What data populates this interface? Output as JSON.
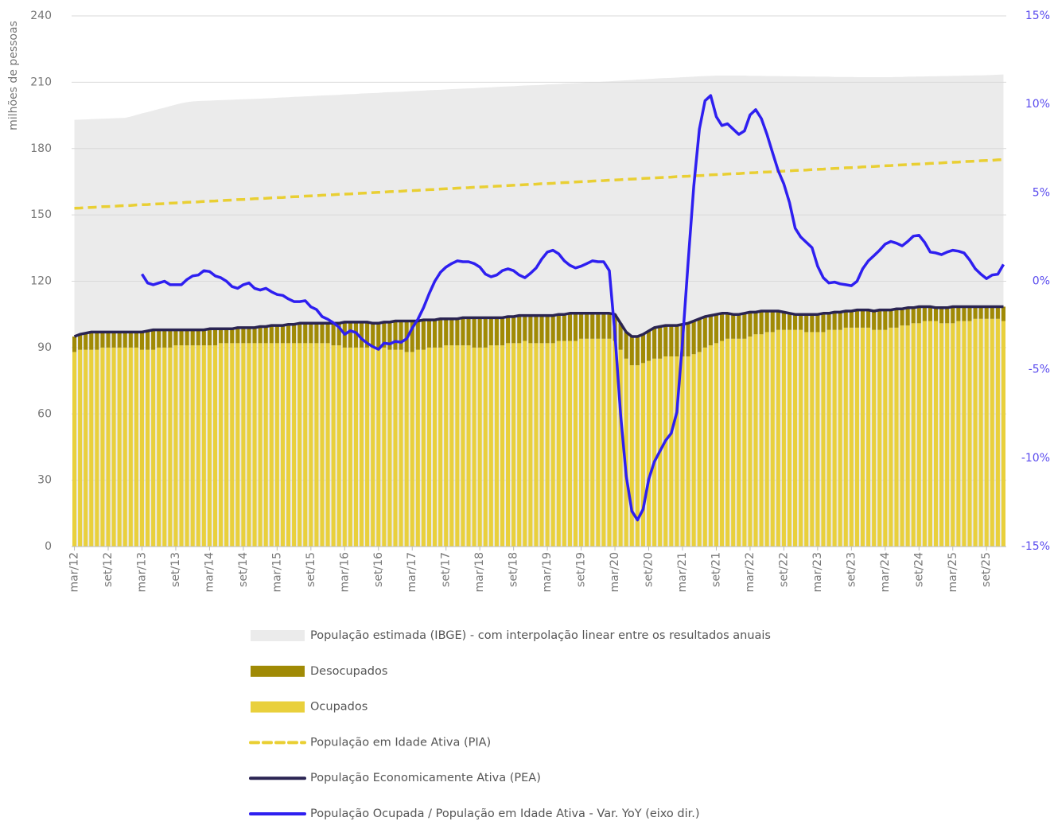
{
  "chart_data": {
    "type": "combo",
    "ylabel": "milhões de pessoas",
    "categories": [
      "mar/12",
      null,
      null,
      null,
      null,
      null,
      "set/12",
      null,
      null,
      null,
      null,
      null,
      "mar/13",
      null,
      null,
      null,
      null,
      null,
      "set/13",
      null,
      null,
      null,
      null,
      null,
      "mar/14",
      null,
      null,
      null,
      null,
      null,
      "set/14",
      null,
      null,
      null,
      null,
      null,
      "mar/15",
      null,
      null,
      null,
      null,
      null,
      "set/15",
      null,
      null,
      null,
      null,
      null,
      "mar/16",
      null,
      null,
      null,
      null,
      null,
      "set/16",
      null,
      null,
      null,
      null,
      null,
      "mar/17",
      null,
      null,
      null,
      null,
      null,
      "set/17",
      null,
      null,
      null,
      null,
      null,
      "mar/18",
      null,
      null,
      null,
      null,
      null,
      "set/18",
      null,
      null,
      null,
      null,
      null,
      "mar/19",
      null,
      null,
      null,
      null,
      null,
      "set/19",
      null,
      null,
      null,
      null,
      null,
      "mar/20",
      null,
      null,
      null,
      null,
      null,
      "set/20",
      null,
      null,
      null,
      null,
      null,
      "mar/21",
      null,
      null,
      null,
      null,
      null,
      "set/21",
      null,
      null,
      null,
      null,
      null,
      "mar/22",
      null,
      null,
      null,
      null,
      null,
      "set/22",
      null,
      null,
      null,
      null,
      null,
      "mar/23",
      null,
      null,
      null,
      null,
      null,
      "set/23",
      null,
      null,
      null,
      null,
      null,
      "mar/24",
      null,
      null,
      null,
      null,
      null,
      "set/24",
      null,
      null,
      null,
      null,
      null,
      "mar/25",
      null,
      null,
      null,
      null,
      null,
      "set/25",
      null,
      null,
      null
    ],
    "ylim": [
      0,
      240
    ],
    "yticks": [
      0,
      30,
      60,
      90,
      120,
      150,
      180,
      210,
      240
    ],
    "y2lim": [
      -15,
      15
    ],
    "y2ticks": [
      {
        "value": -15,
        "label": "-15%"
      },
      {
        "value": -10,
        "label": "-10%"
      },
      {
        "value": -5,
        "label": "-5%"
      },
      {
        "value": 0,
        "label": "0%"
      },
      {
        "value": 5,
        "label": "5%"
      },
      {
        "value": 10,
        "label": "10%"
      },
      {
        "value": 15,
        "label": "15%"
      }
    ],
    "grid": true,
    "series": [
      {
        "name": "População estimada (IBGE) - com interpolação linear entre os resultados anuais",
        "type": "area",
        "color": "#ebebeb",
        "values": [
          193.0,
          193.1,
          193.2,
          193.3,
          193.4,
          193.5,
          193.6,
          193.7,
          193.8,
          193.9,
          194.5,
          195.2,
          195.9,
          196.5,
          197.2,
          197.9,
          198.5,
          199.2,
          199.9,
          200.5,
          201.0,
          201.3,
          201.5,
          201.6,
          201.7,
          201.8,
          201.9,
          202.0,
          202.1,
          202.2,
          202.3,
          202.4,
          202.5,
          202.6,
          202.7,
          202.8,
          203.0,
          203.1,
          203.2,
          203.4,
          203.5,
          203.6,
          203.7,
          203.9,
          204.0,
          204.1,
          204.2,
          204.3,
          204.5,
          204.6,
          204.7,
          204.9,
          205.0,
          205.1,
          205.2,
          205.4,
          205.5,
          205.6,
          205.7,
          205.8,
          206.0,
          206.1,
          206.2,
          206.4,
          206.5,
          206.6,
          206.7,
          206.9,
          207.0,
          207.1,
          207.2,
          207.3,
          207.5,
          207.6,
          207.7,
          207.9,
          208.0,
          208.1,
          208.2,
          208.4,
          208.5,
          208.6,
          208.7,
          208.8,
          209.0,
          209.1,
          209.2,
          209.4,
          209.5,
          209.6,
          209.7,
          209.9,
          210.0,
          210.1,
          210.3,
          210.4,
          210.6,
          210.7,
          210.9,
          211.0,
          211.2,
          211.3,
          211.5,
          211.6,
          211.8,
          211.9,
          212.0,
          212.1,
          212.3,
          212.4,
          212.5,
          212.7,
          212.8,
          212.9,
          213.0,
          213.0,
          213.0,
          213.0,
          213.0,
          213.0,
          212.9,
          212.9,
          212.9,
          212.8,
          212.8,
          212.8,
          212.7,
          212.7,
          212.7,
          212.6,
          212.6,
          212.6,
          212.5,
          212.5,
          212.5,
          212.4,
          212.4,
          212.4,
          212.4,
          212.3,
          212.3,
          212.3,
          212.3,
          212.3,
          212.3,
          212.3,
          212.4,
          212.4,
          212.5,
          212.5,
          212.6,
          212.6,
          212.7,
          212.7,
          212.8,
          212.8,
          212.9,
          212.9,
          213.0,
          213.0,
          213.1,
          213.1,
          213.2,
          213.3,
          213.4,
          213.5
        ]
      },
      {
        "name": "Desocupados",
        "type": "bar",
        "color": "#a08a05",
        "values": [
          7,
          7,
          7.5,
          8,
          8,
          7,
          7,
          7,
          7,
          7,
          7,
          7,
          8,
          8.5,
          9,
          8,
          8,
          8,
          7,
          7,
          7,
          7,
          7,
          7,
          7.5,
          7.5,
          6.5,
          6.5,
          6.5,
          7,
          7,
          7,
          7,
          7.5,
          7.5,
          8,
          8,
          8,
          8.5,
          8.5,
          9,
          9,
          9,
          9,
          9,
          9,
          10,
          10,
          11.5,
          11.5,
          11.5,
          11.5,
          11.5,
          11,
          11,
          11.5,
          12.5,
          13,
          13,
          14,
          14,
          13,
          13.5,
          12.5,
          12.5,
          13,
          12,
          12,
          12,
          12.5,
          12.5,
          13.5,
          13.5,
          13.5,
          12.5,
          12.5,
          12.5,
          12,
          12,
          12.5,
          11.5,
          12.5,
          12.5,
          12.5,
          12.5,
          12.5,
          12,
          12,
          12.5,
          12.5,
          11.5,
          11.5,
          11.5,
          11.5,
          11.5,
          11.5,
          12,
          12,
          12,
          13,
          13,
          13,
          13.5,
          14,
          14.5,
          14,
          14,
          14,
          14.5,
          15,
          15,
          15,
          14,
          13.5,
          13,
          12.5,
          11.5,
          11,
          11,
          11.5,
          11,
          10,
          10.5,
          9.5,
          9.5,
          8.5,
          8,
          7.5,
          7,
          7,
          8,
          8,
          8,
          8.5,
          7.5,
          8,
          8,
          7.5,
          7.5,
          8,
          8,
          8,
          8.5,
          9,
          9,
          8,
          8.5,
          7.5,
          8,
          7,
          7.5,
          6.5,
          6.5,
          6,
          7,
          7,
          7.5,
          6.5,
          6.5,
          6.5,
          5.5,
          5.5,
          5.5,
          5.5,
          5.5,
          6.5
        ]
      },
      {
        "name": "Ocupados",
        "type": "bar",
        "color": "#e9d03c",
        "values": [
          88,
          89,
          89,
          89,
          89,
          90,
          90,
          90,
          90,
          90,
          90,
          90,
          89,
          89,
          89,
          90,
          90,
          90,
          91,
          91,
          91,
          91,
          91,
          91,
          91,
          91,
          92,
          92,
          92,
          92,
          92,
          92,
          92,
          92,
          92,
          92,
          92,
          92,
          92,
          92,
          92,
          92,
          92,
          92,
          92,
          92,
          91,
          91,
          90,
          90,
          90,
          90,
          90,
          90,
          90,
          90,
          89,
          89,
          89,
          88,
          88,
          89,
          89,
          90,
          90,
          90,
          91,
          91,
          91,
          91,
          91,
          90,
          90,
          90,
          91,
          91,
          91,
          92,
          92,
          92,
          93,
          92,
          92,
          92,
          92,
          92,
          93,
          93,
          93,
          93,
          94,
          94,
          94,
          94,
          94,
          94,
          93,
          89,
          85,
          82,
          82,
          83,
          84,
          85,
          85,
          86,
          86,
          86,
          86,
          86,
          87,
          88,
          90,
          91,
          92,
          93,
          94,
          94,
          94,
          94,
          95,
          96,
          96,
          97,
          97,
          98,
          98,
          98,
          98,
          98,
          97,
          97,
          97,
          97,
          98,
          98,
          98,
          99,
          99,
          99,
          99,
          99,
          98,
          98,
          98,
          99,
          99,
          100,
          100,
          101,
          101,
          102,
          102,
          102,
          101,
          101,
          101,
          102,
          102,
          102,
          103,
          103,
          103,
          103,
          103,
          102
        ]
      },
      {
        "name": "População em Idade Ativa (PIA)",
        "type": "line",
        "dash": true,
        "color": "#e9cf33",
        "values": [
          153.0,
          153.1,
          153.3,
          153.4,
          153.5,
          153.7,
          153.8,
          153.9,
          154.1,
          154.2,
          154.3,
          154.5,
          154.6,
          154.7,
          154.9,
          155.0,
          155.1,
          155.3,
          155.4,
          155.5,
          155.7,
          155.8,
          155.9,
          156.1,
          156.2,
          156.3,
          156.5,
          156.6,
          156.7,
          156.9,
          157.0,
          157.1,
          157.3,
          157.4,
          157.5,
          157.7,
          157.8,
          157.9,
          158.1,
          158.2,
          158.3,
          158.5,
          158.6,
          158.7,
          158.9,
          159.0,
          159.1,
          159.3,
          159.4,
          159.5,
          159.7,
          159.8,
          159.9,
          160.1,
          160.2,
          160.3,
          160.5,
          160.6,
          160.7,
          160.9,
          161.0,
          161.1,
          161.3,
          161.4,
          161.5,
          161.7,
          161.8,
          161.9,
          162.1,
          162.2,
          162.3,
          162.5,
          162.6,
          162.7,
          162.9,
          163.0,
          163.1,
          163.3,
          163.4,
          163.5,
          163.7,
          163.8,
          163.9,
          164.1,
          164.2,
          164.3,
          164.5,
          164.6,
          164.7,
          164.9,
          165.0,
          165.1,
          165.3,
          165.4,
          165.5,
          165.7,
          165.8,
          165.9,
          166.1,
          166.2,
          166.3,
          166.5,
          166.6,
          166.7,
          166.9,
          167.0,
          167.1,
          167.3,
          167.4,
          167.5,
          167.7,
          167.8,
          167.9,
          168.1,
          168.2,
          168.3,
          168.5,
          168.6,
          168.7,
          168.9,
          169.0,
          169.1,
          169.3,
          169.4,
          169.5,
          169.7,
          169.8,
          169.9,
          170.1,
          170.2,
          170.3,
          170.5,
          170.6,
          170.7,
          170.9,
          171.0,
          171.1,
          171.3,
          171.4,
          171.5,
          171.7,
          171.8,
          171.9,
          172.1,
          172.2,
          172.3,
          172.5,
          172.6,
          172.7,
          172.9,
          173.0,
          173.1,
          173.3,
          173.4,
          173.5,
          173.7,
          173.8,
          173.9,
          174.1,
          174.2,
          174.3,
          174.5,
          174.6,
          174.7,
          174.9,
          175.0
        ]
      },
      {
        "name": "População Economicamente Ativa (PEA)",
        "type": "line",
        "color": "#2a2452",
        "values": [
          95,
          96,
          96.5,
          97,
          97,
          97,
          97,
          97,
          97,
          97,
          97,
          97,
          97,
          97.5,
          98,
          98,
          98,
          98,
          98,
          98,
          98,
          98,
          98,
          98,
          98.5,
          98.5,
          98.5,
          98.5,
          98.5,
          99,
          99,
          99,
          99,
          99.5,
          99.5,
          100,
          100,
          100,
          100.5,
          100.5,
          101,
          101,
          101,
          101,
          101,
          101,
          101,
          101,
          101.5,
          101.5,
          101.5,
          101.5,
          101.5,
          101,
          101,
          101.5,
          101.5,
          102,
          102,
          102,
          102,
          102,
          102.5,
          102.5,
          102.5,
          103,
          103,
          103,
          103,
          103.5,
          103.5,
          103.5,
          103.5,
          103.5,
          103.5,
          103.5,
          103.5,
          104,
          104,
          104.5,
          104.5,
          104.5,
          104.5,
          104.5,
          104.5,
          104.5,
          105,
          105,
          105.5,
          105.5,
          105.5,
          105.5,
          105.5,
          105.5,
          105.5,
          105.5,
          105,
          101,
          97,
          95,
          95,
          96,
          97.5,
          99,
          99.5,
          100,
          100,
          100,
          100.5,
          101,
          102,
          103,
          104,
          104.5,
          105,
          105.5,
          105.5,
          105,
          105,
          105.5,
          106,
          106,
          106.5,
          106.5,
          106.5,
          106.5,
          106,
          105.5,
          105,
          105,
          105,
          105,
          105,
          105.5,
          105.5,
          106,
          106,
          106.5,
          106.5,
          107,
          107,
          107,
          106.5,
          107,
          107,
          107,
          107.5,
          107.5,
          108,
          108,
          108.5,
          108.5,
          108.5,
          108,
          108,
          108,
          108.5,
          108.5,
          108.5,
          108.5,
          108.5,
          108.5,
          108.5,
          108.5,
          108.5,
          108.5
        ]
      },
      {
        "name": "População Ocupada / População em Idade Ativa - Var. YoY (eixo dir.)",
        "type": "line",
        "axis": "y2",
        "color": "#2e1ff0",
        "values": [
          null,
          null,
          null,
          null,
          null,
          null,
          null,
          null,
          null,
          null,
          null,
          null,
          0.4,
          -0.1,
          -0.2,
          -0.1,
          0.0,
          -0.2,
          -0.2,
          -0.2,
          0.1,
          0.3,
          0.35,
          0.6,
          0.55,
          0.3,
          0.2,
          0.0,
          -0.3,
          -0.4,
          -0.2,
          -0.1,
          -0.4,
          -0.5,
          -0.4,
          -0.6,
          -0.75,
          -0.8,
          -1.0,
          -1.15,
          -1.15,
          -1.1,
          -1.45,
          -1.6,
          -2.0,
          -2.15,
          -2.35,
          -2.6,
          -3.0,
          -2.8,
          -2.9,
          -3.25,
          -3.5,
          -3.7,
          -3.85,
          -3.5,
          -3.55,
          -3.4,
          -3.45,
          -3.25,
          -2.65,
          -2.15,
          -1.5,
          -0.7,
          0.0,
          0.5,
          0.8,
          1.0,
          1.15,
          1.1,
          1.1,
          1.0,
          0.8,
          0.4,
          0.25,
          0.35,
          0.6,
          0.7,
          0.6,
          0.35,
          0.2,
          0.45,
          0.75,
          1.25,
          1.65,
          1.75,
          1.55,
          1.15,
          0.9,
          0.75,
          0.85,
          1.0,
          1.15,
          1.1,
          1.1,
          0.6,
          -3.0,
          -7.5,
          -11.0,
          -13.0,
          -13.5,
          -12.9,
          -11.2,
          -10.2,
          -9.6,
          -9.0,
          -8.6,
          -7.4,
          -3.4,
          1.1,
          5.4,
          8.6,
          10.2,
          10.5,
          9.3,
          8.8,
          8.9,
          8.6,
          8.3,
          8.5,
          9.4,
          9.7,
          9.2,
          8.3,
          7.25,
          6.25,
          5.5,
          4.45,
          3.0,
          2.5,
          2.2,
          1.9,
          0.85,
          0.2,
          -0.1,
          -0.05,
          -0.15,
          -0.2,
          -0.25,
          0.0,
          0.7,
          1.15,
          1.45,
          1.75,
          2.1,
          2.25,
          2.15,
          2.0,
          2.25,
          2.55,
          2.6,
          2.2,
          1.65,
          1.6,
          1.5,
          1.65,
          1.75,
          1.7,
          1.6,
          1.2,
          0.7,
          0.4,
          0.15,
          0.35,
          0.4,
          0.95
        ]
      }
    ]
  }
}
